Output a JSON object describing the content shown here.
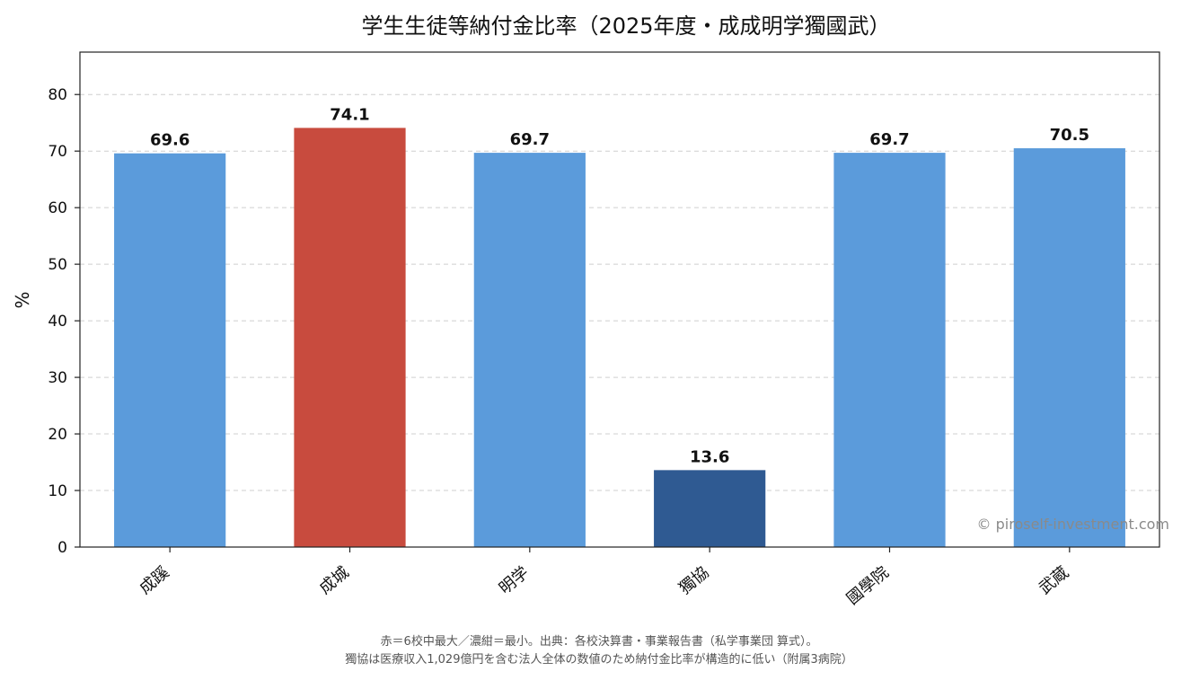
{
  "chart_data": {
    "type": "bar",
    "title": "学生生徒等納付金比率（2025年度・成成明学獨國武）",
    "ylabel": "%",
    "xlabel": "",
    "ylim": [
      0,
      87.5
    ],
    "yticks": [
      0,
      10,
      20,
      30,
      40,
      50,
      60,
      70,
      80
    ],
    "categories": [
      "成蹊",
      "成城",
      "明学",
      "獨協",
      "國學院",
      "武蔵"
    ],
    "values": [
      69.6,
      74.1,
      69.7,
      13.6,
      69.7,
      70.5
    ],
    "value_labels": [
      "69.6",
      "74.1",
      "69.7",
      "13.6",
      "69.7",
      "70.5"
    ],
    "bar_colors": [
      "#5b9bdb",
      "#c84b3e",
      "#5b9bdb",
      "#2f5a92",
      "#5b9bdb",
      "#5b9bdb"
    ],
    "grid": true,
    "watermark": "© piroself-investment.com",
    "notes": [
      "赤＝6校中最大／濃紺＝最小。出典：各校決算書・事業報告書（私学事業団 算式）。",
      "獨協は医療収入1,029億円を含む法人全体の数値のため納付金比率が構造的に低い（附属3病院）"
    ]
  }
}
